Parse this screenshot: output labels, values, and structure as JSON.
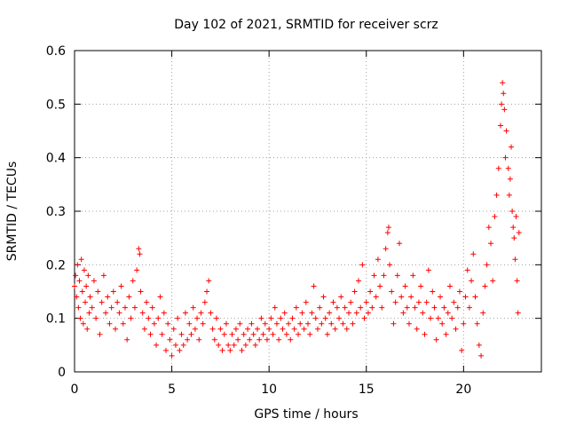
{
  "chart_data": {
    "type": "scatter",
    "title": "Day 102 of 2021, SRMTID for receiver scrz",
    "xlabel": "GPS time / hours",
    "ylabel": "SRMTID / TECUs",
    "xlim": [
      0,
      24
    ],
    "ylim": [
      0,
      0.6
    ],
    "xticks": [
      0,
      5,
      10,
      15,
      20
    ],
    "xtick_labels": [
      "0",
      "5",
      "10",
      "15",
      "20"
    ],
    "yticks": [
      0,
      0.1,
      0.2,
      0.3,
      0.4,
      0.5,
      0.6
    ],
    "ytick_labels": [
      "0",
      "0.1",
      "0.2",
      "0.3",
      "0.4",
      "0.5",
      "0.6"
    ],
    "grid": true,
    "marker": "+",
    "color": "#ff0000",
    "series": [
      {
        "name": "SRMTID",
        "points": [
          [
            0.0,
            0.16
          ],
          [
            0.05,
            0.18
          ],
          [
            0.1,
            0.14
          ],
          [
            0.15,
            0.2
          ],
          [
            0.2,
            0.12
          ],
          [
            0.25,
            0.17
          ],
          [
            0.3,
            0.1
          ],
          [
            0.35,
            0.21
          ],
          [
            0.4,
            0.15
          ],
          [
            0.45,
            0.09
          ],
          [
            0.5,
            0.19
          ],
          [
            0.55,
            0.13
          ],
          [
            0.6,
            0.16
          ],
          [
            0.65,
            0.08
          ],
          [
            0.7,
            0.18
          ],
          [
            0.75,
            0.11
          ],
          [
            0.8,
            0.14
          ],
          [
            0.9,
            0.12
          ],
          [
            1.0,
            0.17
          ],
          [
            1.1,
            0.1
          ],
          [
            1.2,
            0.15
          ],
          [
            1.3,
            0.07
          ],
          [
            1.4,
            0.13
          ],
          [
            1.5,
            0.18
          ],
          [
            1.6,
            0.11
          ],
          [
            1.7,
            0.14
          ],
          [
            1.8,
            0.09
          ],
          [
            1.9,
            0.12
          ],
          [
            2.0,
            0.15
          ],
          [
            2.1,
            0.08
          ],
          [
            2.2,
            0.13
          ],
          [
            2.3,
            0.11
          ],
          [
            2.4,
            0.16
          ],
          [
            2.5,
            0.09
          ],
          [
            2.6,
            0.12
          ],
          [
            2.7,
            0.06
          ],
          [
            2.8,
            0.14
          ],
          [
            2.9,
            0.1
          ],
          [
            3.0,
            0.17
          ],
          [
            3.1,
            0.12
          ],
          [
            3.2,
            0.19
          ],
          [
            3.3,
            0.23
          ],
          [
            3.35,
            0.22
          ],
          [
            3.4,
            0.15
          ],
          [
            3.5,
            0.11
          ],
          [
            3.6,
            0.08
          ],
          [
            3.7,
            0.13
          ],
          [
            3.8,
            0.1
          ],
          [
            3.9,
            0.07
          ],
          [
            4.0,
            0.12
          ],
          [
            4.1,
            0.09
          ],
          [
            4.2,
            0.05
          ],
          [
            4.3,
            0.1
          ],
          [
            4.4,
            0.14
          ],
          [
            4.5,
            0.07
          ],
          [
            4.6,
            0.11
          ],
          [
            4.7,
            0.04
          ],
          [
            4.8,
            0.09
          ],
          [
            4.9,
            0.06
          ],
          [
            5.0,
            0.03
          ],
          [
            5.1,
            0.08
          ],
          [
            5.2,
            0.05
          ],
          [
            5.3,
            0.1
          ],
          [
            5.4,
            0.04
          ],
          [
            5.5,
            0.07
          ],
          [
            5.6,
            0.05
          ],
          [
            5.7,
            0.11
          ],
          [
            5.8,
            0.06
          ],
          [
            5.9,
            0.09
          ],
          [
            6.0,
            0.07
          ],
          [
            6.1,
            0.12
          ],
          [
            6.2,
            0.08
          ],
          [
            6.3,
            0.1
          ],
          [
            6.4,
            0.06
          ],
          [
            6.5,
            0.11
          ],
          [
            6.6,
            0.09
          ],
          [
            6.7,
            0.13
          ],
          [
            6.8,
            0.15
          ],
          [
            6.9,
            0.17
          ],
          [
            7.0,
            0.11
          ],
          [
            7.1,
            0.08
          ],
          [
            7.2,
            0.06
          ],
          [
            7.3,
            0.1
          ],
          [
            7.4,
            0.05
          ],
          [
            7.5,
            0.08
          ],
          [
            7.6,
            0.04
          ],
          [
            7.7,
            0.07
          ],
          [
            7.8,
            0.09
          ],
          [
            7.9,
            0.05
          ],
          [
            8.0,
            0.04
          ],
          [
            8.1,
            0.07
          ],
          [
            8.2,
            0.05
          ],
          [
            8.3,
            0.08
          ],
          [
            8.4,
            0.06
          ],
          [
            8.5,
            0.09
          ],
          [
            8.6,
            0.04
          ],
          [
            8.7,
            0.07
          ],
          [
            8.8,
            0.05
          ],
          [
            8.9,
            0.08
          ],
          [
            9.0,
            0.06
          ],
          [
            9.1,
            0.09
          ],
          [
            9.2,
            0.07
          ],
          [
            9.3,
            0.05
          ],
          [
            9.4,
            0.08
          ],
          [
            9.5,
            0.06
          ],
          [
            9.6,
            0.1
          ],
          [
            9.7,
            0.07
          ],
          [
            9.8,
            0.09
          ],
          [
            9.9,
            0.06
          ],
          [
            10.0,
            0.08
          ],
          [
            10.1,
            0.1
          ],
          [
            10.2,
            0.07
          ],
          [
            10.3,
            0.12
          ],
          [
            10.4,
            0.09
          ],
          [
            10.5,
            0.06
          ],
          [
            10.6,
            0.1
          ],
          [
            10.7,
            0.08
          ],
          [
            10.8,
            0.11
          ],
          [
            10.9,
            0.07
          ],
          [
            11.0,
            0.09
          ],
          [
            11.1,
            0.06
          ],
          [
            11.2,
            0.1
          ],
          [
            11.3,
            0.08
          ],
          [
            11.4,
            0.12
          ],
          [
            11.5,
            0.07
          ],
          [
            11.6,
            0.09
          ],
          [
            11.7,
            0.11
          ],
          [
            11.8,
            0.08
          ],
          [
            11.9,
            0.13
          ],
          [
            12.0,
            0.09
          ],
          [
            12.1,
            0.07
          ],
          [
            12.2,
            0.11
          ],
          [
            12.3,
            0.16
          ],
          [
            12.4,
            0.1
          ],
          [
            12.5,
            0.08
          ],
          [
            12.6,
            0.12
          ],
          [
            12.7,
            0.09
          ],
          [
            12.8,
            0.14
          ],
          [
            12.9,
            0.1
          ],
          [
            13.0,
            0.07
          ],
          [
            13.1,
            0.11
          ],
          [
            13.2,
            0.09
          ],
          [
            13.3,
            0.13
          ],
          [
            13.4,
            0.08
          ],
          [
            13.5,
            0.12
          ],
          [
            13.6,
            0.1
          ],
          [
            13.7,
            0.14
          ],
          [
            13.8,
            0.09
          ],
          [
            13.9,
            0.12
          ],
          [
            14.0,
            0.08
          ],
          [
            14.1,
            0.11
          ],
          [
            14.2,
            0.13
          ],
          [
            14.3,
            0.09
          ],
          [
            14.4,
            0.15
          ],
          [
            14.5,
            0.11
          ],
          [
            14.6,
            0.17
          ],
          [
            14.7,
            0.12
          ],
          [
            14.8,
            0.2
          ],
          [
            14.9,
            0.1
          ],
          [
            15.0,
            0.13
          ],
          [
            15.1,
            0.11
          ],
          [
            15.2,
            0.15
          ],
          [
            15.3,
            0.12
          ],
          [
            15.4,
            0.18
          ],
          [
            15.5,
            0.14
          ],
          [
            15.6,
            0.21
          ],
          [
            15.7,
            0.16
          ],
          [
            15.8,
            0.12
          ],
          [
            15.9,
            0.18
          ],
          [
            16.0,
            0.23
          ],
          [
            16.1,
            0.26
          ],
          [
            16.15,
            0.27
          ],
          [
            16.2,
            0.2
          ],
          [
            16.3,
            0.15
          ],
          [
            16.4,
            0.09
          ],
          [
            16.5,
            0.13
          ],
          [
            16.6,
            0.18
          ],
          [
            16.7,
            0.24
          ],
          [
            16.8,
            0.14
          ],
          [
            16.9,
            0.11
          ],
          [
            17.0,
            0.16
          ],
          [
            17.1,
            0.12
          ],
          [
            17.2,
            0.09
          ],
          [
            17.3,
            0.14
          ],
          [
            17.4,
            0.18
          ],
          [
            17.5,
            0.12
          ],
          [
            17.6,
            0.08
          ],
          [
            17.7,
            0.13
          ],
          [
            17.8,
            0.16
          ],
          [
            17.9,
            0.11
          ],
          [
            18.0,
            0.07
          ],
          [
            18.1,
            0.13
          ],
          [
            18.2,
            0.19
          ],
          [
            18.3,
            0.1
          ],
          [
            18.4,
            0.15
          ],
          [
            18.5,
            0.12
          ],
          [
            18.6,
            0.06
          ],
          [
            18.7,
            0.1
          ],
          [
            18.8,
            0.14
          ],
          [
            18.9,
            0.09
          ],
          [
            19.0,
            0.12
          ],
          [
            19.1,
            0.07
          ],
          [
            19.2,
            0.11
          ],
          [
            19.3,
            0.16
          ],
          [
            19.4,
            0.1
          ],
          [
            19.5,
            0.13
          ],
          [
            19.6,
            0.08
          ],
          [
            19.7,
            0.12
          ],
          [
            19.8,
            0.15
          ],
          [
            19.9,
            0.04
          ],
          [
            20.0,
            0.09
          ],
          [
            20.1,
            0.14
          ],
          [
            20.2,
            0.19
          ],
          [
            20.3,
            0.12
          ],
          [
            20.4,
            0.17
          ],
          [
            20.5,
            0.22
          ],
          [
            20.6,
            0.14
          ],
          [
            20.7,
            0.09
          ],
          [
            20.8,
            0.05
          ],
          [
            20.9,
            0.03
          ],
          [
            21.0,
            0.11
          ],
          [
            21.1,
            0.16
          ],
          [
            21.2,
            0.2
          ],
          [
            21.3,
            0.27
          ],
          [
            21.4,
            0.24
          ],
          [
            21.5,
            0.17
          ],
          [
            21.6,
            0.29
          ],
          [
            21.7,
            0.33
          ],
          [
            21.8,
            0.38
          ],
          [
            21.9,
            0.46
          ],
          [
            21.95,
            0.5
          ],
          [
            22.0,
            0.54
          ],
          [
            22.05,
            0.52
          ],
          [
            22.1,
            0.49
          ],
          [
            22.15,
            0.4
          ],
          [
            22.2,
            0.45
          ],
          [
            22.3,
            0.38
          ],
          [
            22.35,
            0.33
          ],
          [
            22.4,
            0.36
          ],
          [
            22.45,
            0.42
          ],
          [
            22.5,
            0.3
          ],
          [
            22.55,
            0.27
          ],
          [
            22.6,
            0.25
          ],
          [
            22.65,
            0.21
          ],
          [
            22.7,
            0.29
          ],
          [
            22.75,
            0.17
          ],
          [
            22.8,
            0.11
          ],
          [
            22.85,
            0.26
          ]
        ]
      }
    ]
  }
}
